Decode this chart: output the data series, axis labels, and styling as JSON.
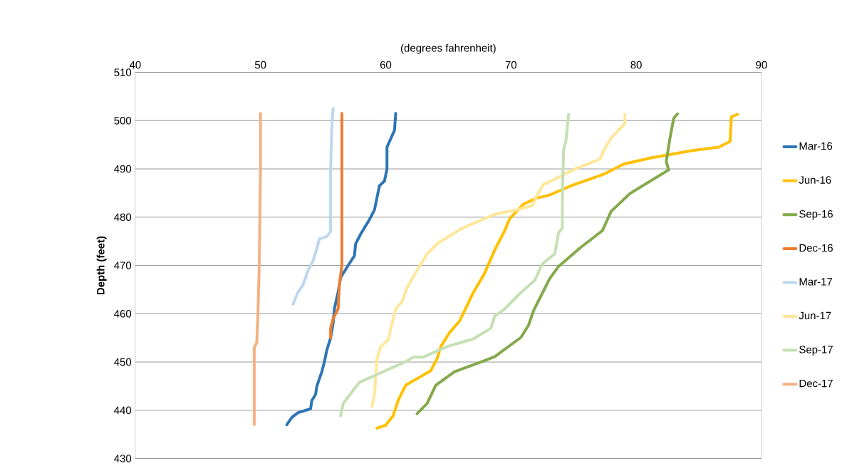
{
  "chart_data": {
    "type": "line",
    "xlabel": "(degrees fahrenheit)",
    "ylabel": "Depth (feet)",
    "xlim": [
      40,
      90
    ],
    "ylim": [
      430,
      510
    ],
    "xticks": [
      40,
      50,
      60,
      70,
      80,
      90
    ],
    "yticks": [
      430,
      440,
      450,
      460,
      470,
      480,
      490,
      500,
      510
    ],
    "grid": "y",
    "legend": "right",
    "marker": "none",
    "line_style": "solid",
    "series": [
      {
        "name": "Mar-16",
        "color": "#2e75b6",
        "x": [
          52.1,
          52.5,
          53.0,
          54.0,
          54.1,
          54.4,
          54.5,
          54.9,
          55.1,
          55.3,
          55.6,
          55.8,
          55.9,
          56.2,
          56.4,
          57.0,
          57.5,
          57.6,
          58.0,
          58.7,
          59.1,
          59.3,
          59.5,
          59.9,
          60.1,
          60.1,
          60.7,
          60.8
        ],
        "values": [
          437,
          438.5,
          439.5,
          440.3,
          442,
          443.3,
          445,
          448,
          450,
          452.5,
          455,
          458,
          461,
          464.5,
          467.5,
          470,
          472,
          474.5,
          476.5,
          479.5,
          481.5,
          484,
          486.5,
          487.5,
          490,
          494.5,
          498,
          501.5
        ]
      },
      {
        "name": "Jun-16",
        "color": "#ffc000",
        "x": [
          59.3,
          60.0,
          60.6,
          61.0,
          61.6,
          62.6,
          63.6,
          64.1,
          64.4,
          65.1,
          65.9,
          67.0,
          67.9,
          68.7,
          69.5,
          69.9,
          71.0,
          72.0,
          73.1,
          74.8,
          77.5,
          79.0,
          81.2,
          84.5,
          86.6,
          87.5,
          87.6,
          88.1
        ],
        "values": [
          436.3,
          436.9,
          438.9,
          442.1,
          445.2,
          446.7,
          448.2,
          450.7,
          453.2,
          456.1,
          458.5,
          464.4,
          468.4,
          473.2,
          477.2,
          479.7,
          482.7,
          483.9,
          484.6,
          486.5,
          489,
          491,
          492.3,
          493.8,
          494.5,
          495.7,
          500.8,
          501.3
        ]
      },
      {
        "name": "Sep-16",
        "color": "#84a94b",
        "x": [
          62.5,
          63.3,
          64.0,
          65.5,
          67.2,
          68.0,
          68.7,
          70.8,
          71.4,
          71.8,
          73.1,
          73.8,
          75.6,
          77.3,
          78.0,
          79.5,
          82.6,
          82.4,
          82.7,
          83.0,
          83.3
        ],
        "values": [
          439.3,
          441.4,
          445.2,
          448,
          449.6,
          450.4,
          451.1,
          455.1,
          457.6,
          460.6,
          467.3,
          469.8,
          473.8,
          477.2,
          481.2,
          484.9,
          489.8,
          491.5,
          496.4,
          500.5,
          501.4
        ]
      },
      {
        "name": "Dec-16",
        "color": "#ed7d31",
        "x": [
          55.6,
          55.6,
          55.8,
          56.2,
          56.3,
          56.5,
          56.5
        ],
        "values": [
          455,
          457,
          459,
          461,
          466,
          470,
          501.5
        ]
      },
      {
        "name": "Mar-17",
        "color": "#bdd7ee",
        "x": [
          52.6,
          53.0,
          53.4,
          53.8,
          54.2,
          54.5,
          54.7,
          55.3,
          55.6,
          55.6,
          55.7,
          55.8
        ],
        "values": [
          462,
          464.5,
          466,
          469,
          471,
          473.5,
          475.5,
          476,
          477,
          490,
          499,
          502.5
        ]
      },
      {
        "name": "Jun-17",
        "color": "#ffe699",
        "x": [
          58.9,
          59.1,
          59.3,
          59.6,
          60.2,
          60.5,
          60.8,
          61.3,
          61.7,
          62.6,
          63.3,
          64.2,
          66.1,
          68.7,
          70.3,
          71.7,
          72.1,
          72.6,
          73.3,
          75.2,
          77.1,
          77.4,
          78.0,
          79.1,
          79.1
        ],
        "values": [
          440.8,
          443.3,
          450.7,
          453.2,
          454.6,
          458,
          461,
          462.5,
          465.4,
          469.4,
          472.4,
          474.7,
          477.7,
          480.6,
          481.4,
          482.4,
          484.6,
          486.8,
          487.6,
          490.1,
          492,
          493.8,
          496.4,
          499.4,
          501.3
        ]
      },
      {
        "name": "Sep-17",
        "color": "#c5e0b4",
        "x": [
          56.4,
          56.6,
          57.9,
          59.3,
          61.7,
          62.2,
          63.0,
          64.9,
          67.0,
          68.4,
          68.7,
          69.5,
          70.8,
          71.9,
          72.5,
          73.5,
          73.8,
          74.1,
          74.1,
          74.2,
          74.4,
          74.6
        ],
        "values": [
          438.9,
          441.4,
          445.8,
          447.4,
          450.2,
          451,
          451,
          453.2,
          454.8,
          457,
          459.5,
          461,
          464.4,
          466.9,
          470.3,
          472.4,
          476.8,
          477.7,
          482.7,
          493.9,
          496,
          501.3
        ]
      },
      {
        "name": "Dec-17",
        "color": "#f4b183",
        "x": [
          49.5,
          49.5,
          49.7,
          49.8,
          49.9,
          50.0,
          50.0
        ],
        "values": [
          437,
          453,
          454,
          460,
          470,
          490,
          501.5
        ]
      }
    ]
  }
}
